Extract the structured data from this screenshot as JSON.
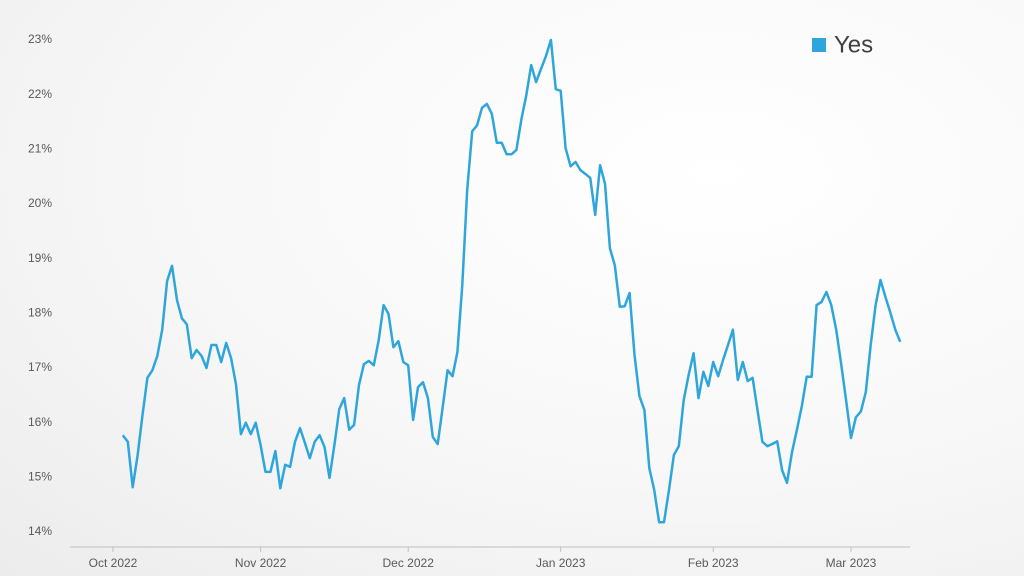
{
  "chart_data": {
    "type": "line",
    "categories": [
      "Oct 2022",
      null,
      null,
      null,
      null,
      null,
      null,
      null,
      null,
      null,
      null,
      null,
      null,
      null,
      null,
      null,
      null,
      null,
      null,
      null,
      null,
      null,
      null,
      null,
      null,
      null,
      null,
      null,
      null,
      null,
      "Nov 2022",
      null,
      null,
      null,
      null,
      null,
      null,
      null,
      null,
      null,
      null,
      null,
      null,
      null,
      null,
      null,
      null,
      null,
      null,
      null,
      null,
      null,
      null,
      null,
      null,
      null,
      null,
      null,
      null,
      null,
      "Dec 2022",
      null,
      null,
      null,
      null,
      null,
      null,
      null,
      null,
      null,
      null,
      null,
      null,
      null,
      null,
      null,
      null,
      null,
      null,
      null,
      null,
      null,
      null,
      null,
      null,
      null,
      null,
      null,
      null,
      null,
      null,
      "Jan 2023",
      null,
      null,
      null,
      null,
      null,
      null,
      null,
      null,
      null,
      null,
      null,
      null,
      null,
      null,
      null,
      null,
      null,
      null,
      null,
      null,
      null,
      null,
      null,
      null,
      null,
      null,
      null,
      null,
      null,
      null,
      "Feb 2023",
      null,
      null,
      null,
      null,
      null,
      null,
      null,
      null,
      null,
      null,
      null,
      null,
      null,
      null,
      null,
      null,
      null,
      null,
      null,
      null,
      null,
      null,
      null,
      null,
      null,
      null,
      null,
      "Mar 2023",
      null,
      null,
      null,
      null,
      null,
      null,
      null,
      null,
      null,
      null
    ],
    "series": [
      {
        "name": "Yes",
        "color": "#2ea6dc",
        "values": [
          null,
          null,
          15.77,
          15.65,
          14.82,
          15.4,
          16.14,
          16.82,
          16.96,
          17.22,
          17.7,
          18.59,
          18.87,
          18.24,
          17.91,
          17.8,
          17.18,
          17.33,
          17.22,
          17.0,
          17.42,
          17.42,
          17.11,
          17.46,
          17.18,
          16.7,
          15.79,
          16.0,
          15.79,
          16.0,
          15.59,
          15.1,
          15.1,
          15.48,
          14.8,
          15.23,
          15.19,
          15.65,
          15.9,
          15.63,
          15.35,
          15.65,
          15.77,
          15.55,
          14.99,
          15.59,
          16.25,
          16.45,
          15.87,
          15.96,
          16.69,
          17.07,
          17.13,
          17.05,
          17.51,
          18.15,
          17.99,
          17.38,
          17.49,
          17.11,
          17.05,
          16.05,
          16.65,
          16.74,
          16.45,
          15.74,
          15.61,
          16.27,
          16.96,
          16.85,
          17.29,
          18.52,
          20.26,
          21.33,
          21.44,
          21.76,
          21.83,
          21.65,
          21.12,
          21.12,
          20.91,
          20.91,
          20.99,
          21.55,
          21.99,
          22.54,
          22.23,
          22.47,
          22.71,
          23.0,
          22.1,
          22.07,
          21.02,
          20.69,
          20.77,
          20.62,
          20.55,
          20.48,
          19.8,
          20.71,
          20.37,
          19.19,
          18.88,
          18.12,
          18.13,
          18.37,
          17.24,
          16.49,
          16.23,
          15.17,
          14.77,
          14.18,
          14.18,
          14.77,
          15.41,
          15.57,
          16.41,
          16.87,
          17.27,
          16.45,
          16.93,
          16.67,
          17.11,
          16.85,
          17.15,
          17.42,
          17.7,
          16.78,
          17.11,
          16.76,
          16.82,
          16.23,
          15.65,
          15.57,
          15.61,
          15.66,
          15.13,
          14.9,
          15.46,
          15.87,
          16.3,
          16.84,
          16.84,
          18.15,
          18.21,
          18.39,
          18.15,
          17.7,
          17.07,
          16.41,
          15.72,
          16.1,
          16.2,
          16.56,
          17.42,
          18.15,
          18.61,
          18.3,
          18.01,
          17.7,
          17.48
        ]
      }
    ],
    "ylim": [
      14,
      23
    ],
    "yticks": [
      {
        "value": 14,
        "label": "14%"
      },
      {
        "value": 15,
        "label": "15%"
      },
      {
        "value": 16,
        "label": "16%"
      },
      {
        "value": 17,
        "label": "17%"
      },
      {
        "value": 18,
        "label": "18%"
      },
      {
        "value": 19,
        "label": "19%"
      },
      {
        "value": 20,
        "label": "20%"
      },
      {
        "value": 21,
        "label": "21%"
      },
      {
        "value": 22,
        "label": "22%"
      },
      {
        "value": 23,
        "label": "23%"
      }
    ],
    "grid": false,
    "legend": "top-right"
  }
}
